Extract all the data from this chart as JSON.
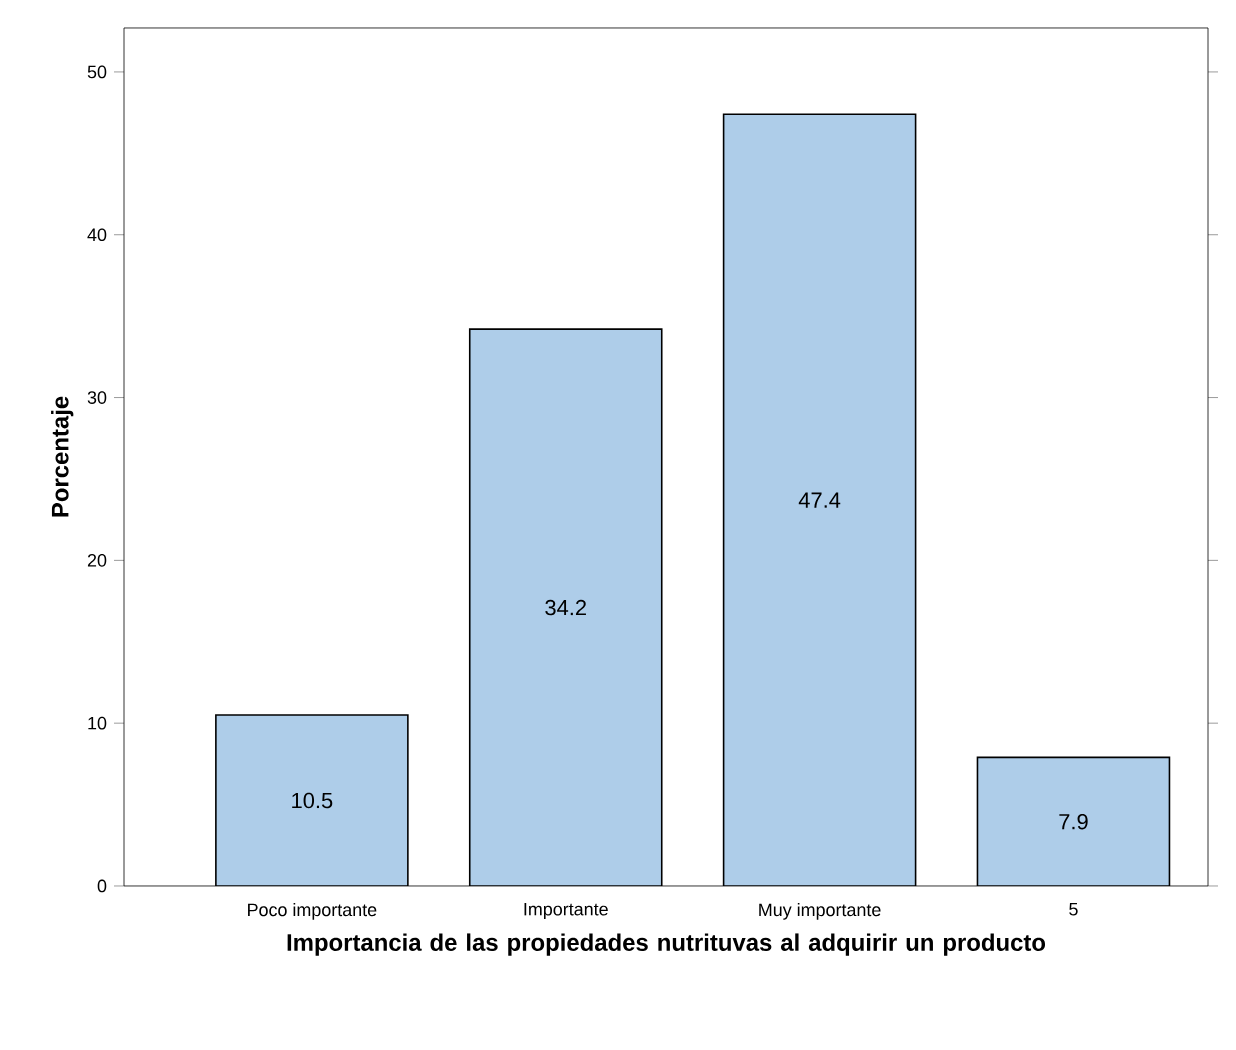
{
  "chart_data": {
    "type": "bar",
    "xlabel": "Importancia de las propiedades nutrituvas al adquirir un producto",
    "ylabel": "Porcentaje",
    "categories": [
      "Poco importante",
      "Importante",
      "Muy importante",
      "5"
    ],
    "values": [
      10.5,
      34.2,
      47.4,
      7.9
    ],
    "color": "#aecde9",
    "data_labels": true,
    "ylim": [
      0,
      52.7
    ],
    "yticks": [
      0,
      10,
      20,
      30,
      40,
      50
    ],
    "grid": false
  }
}
